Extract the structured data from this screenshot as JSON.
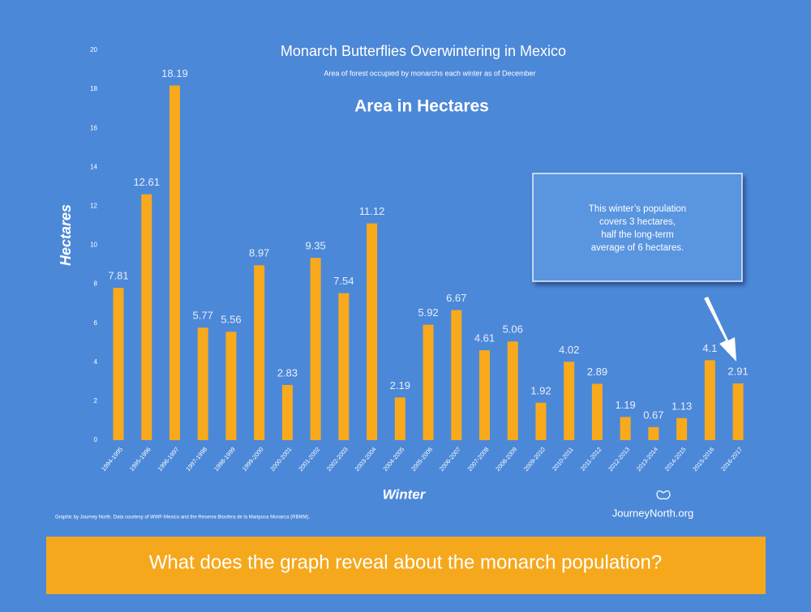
{
  "chart_data": {
    "type": "bar",
    "title": "Monarch Butterflies Overwintering in Mexico",
    "subtitle": "Area of forest occupied by monarchs each winter as of December",
    "heading": "Area in Hectares",
    "y_label": "Hectares",
    "x_label": "Winter",
    "categories": [
      "1994-1995",
      "1995-1996",
      "1996-1997",
      "1997-1998",
      "1998-1999",
      "1999-2000",
      "2000-2001",
      "2001-2002",
      "2002-2003",
      "2003-2004",
      "2004-2005",
      "2005-2006",
      "2006-2007",
      "2007-2008",
      "2008-2009",
      "2009-2010",
      "2010-2011",
      "2011-2012",
      "2012-2013",
      "2013-2014",
      "2014-2015",
      "2015-2016",
      "2016-2017"
    ],
    "values": [
      7.81,
      12.61,
      18.19,
      5.77,
      5.56,
      8.97,
      2.83,
      9.35,
      7.54,
      11.12,
      2.19,
      5.92,
      6.67,
      4.61,
      5.06,
      1.92,
      4.02,
      2.89,
      1.19,
      0.67,
      1.13,
      4.1,
      2.91
    ],
    "color": "#f9a91c",
    "ylim": [
      0,
      20
    ],
    "yticks": [
      0,
      2,
      4,
      6,
      8,
      10,
      12,
      14,
      16,
      18,
      20
    ],
    "grid": false,
    "annotation": [
      "This winter’s population",
      "covers 3 hectares,",
      "half the long-term",
      "average of 6 hectares."
    ],
    "credit": "Graphic by Journey North. Data courtesy of WWF-Mexico and the Reserva Biosfera de la Mariposa Monarca (RBMM).",
    "logo": "JourneyNorth.org"
  },
  "question": "What does the graph reveal about the monarch population?"
}
